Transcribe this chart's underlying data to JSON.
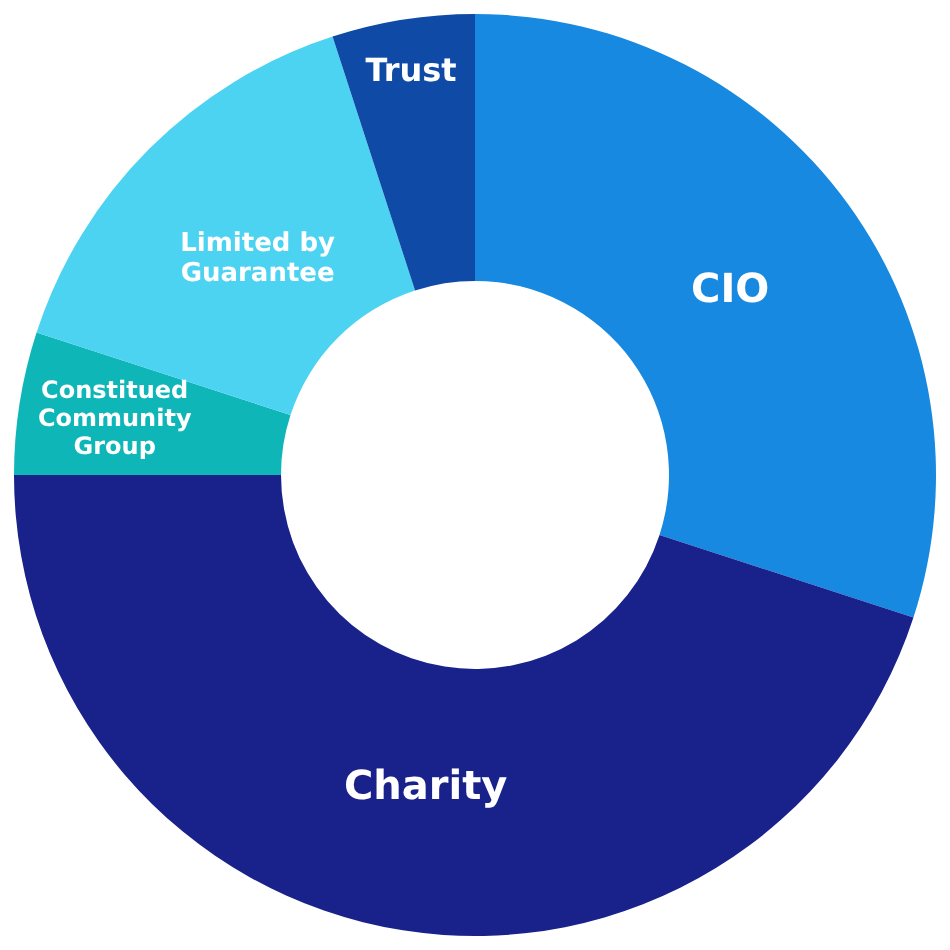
{
  "chart_data": {
    "type": "donut",
    "categories": [
      "CIO",
      "Charity",
      "Constitued Community Group",
      "Limited by Guarantee",
      "Trust"
    ],
    "values": [
      30,
      45,
      5,
      15,
      5
    ],
    "colors": [
      "#1789e0",
      "#19218a",
      "#0fb6b8",
      "#4bd3f1",
      "#0e4aa6"
    ],
    "legend": false
  }
}
